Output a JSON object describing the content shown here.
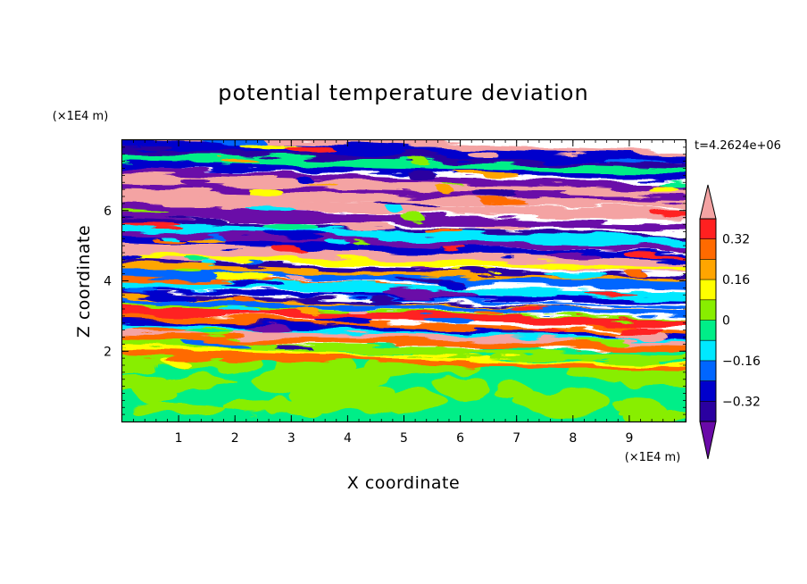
{
  "chart_data": {
    "type": "heatmap",
    "title": "potential temperature deviation",
    "xlabel": "X coordinate",
    "ylabel": "Z coordinate",
    "x_unit": "(×1E4 m)",
    "y_unit": "(×1E4 m)",
    "time_label": "t=4.2624e+06",
    "xlim": [
      0,
      10
    ],
    "ylim": [
      0,
      8
    ],
    "x_ticks": [
      "1",
      "2",
      "3",
      "4",
      "5",
      "6",
      "7",
      "8",
      "9"
    ],
    "y_ticks": [
      "2",
      "4",
      "6"
    ],
    "colorbar": {
      "levels": [
        -0.4,
        -0.32,
        -0.24,
        -0.16,
        -0.08,
        0,
        0.08,
        0.16,
        0.24,
        0.32,
        0.4
      ],
      "tick_labels": [
        "0.32",
        "0.16",
        "0",
        "−0.16",
        "−0.32"
      ],
      "tick_values": [
        0.32,
        0.16,
        0,
        -0.16,
        -0.32
      ],
      "colors": {
        "over": "#f4a3a3",
        "band_0.32_0.40": "#ff2020",
        "band_0.24_0.32": "#ff6a00",
        "band_0.16_0.24": "#ffa500",
        "band_0.08_0.16": "#ffff00",
        "band_0.00_0.08": "#88ee00",
        "band_-0.08_0.00": "#00ee88",
        "band_-0.16_-0.08": "#00e8ff",
        "band_-0.24_-0.16": "#0066ff",
        "band_-0.32_-0.24": "#0000cc",
        "band_-0.40_-0.32": "#2a00a0",
        "under": "#6a0aa8"
      }
    },
    "stratified_layer_z": [
      2.1,
      8.0
    ],
    "mixed_layer_z": [
      0,
      2.1
    ],
    "mixed_layer_values": "near 0 (mostly -0.08 to 0.08, small patches up to 0.16)"
  }
}
